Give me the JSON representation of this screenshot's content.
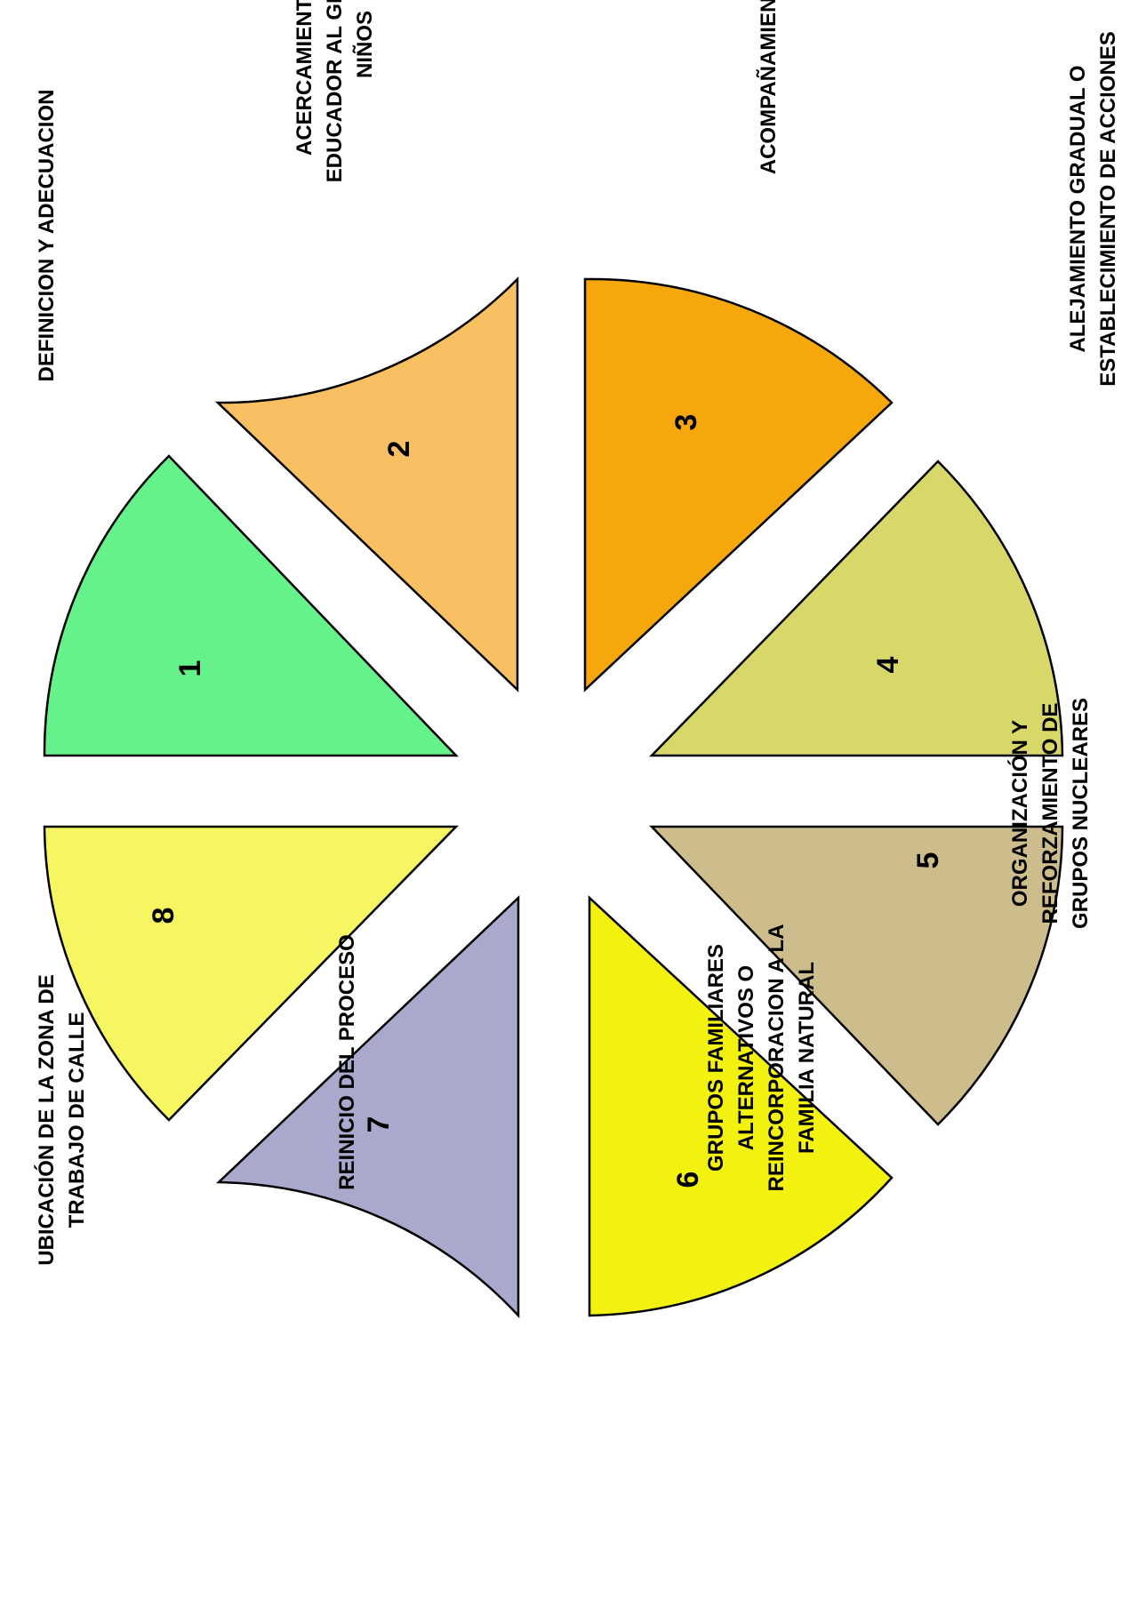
{
  "segments": [
    {
      "number": "1",
      "color": "#66f28a",
      "label": [
        "DEFINICION Y ADECUACION"
      ]
    },
    {
      "number": "2",
      "color": "#f9bf63",
      "label": [
        "ACERCAMIENTO DEL",
        "EDUCADOR AL GRUPO DE",
        "NIÑOS"
      ]
    },
    {
      "number": "3",
      "color": "#f5a70b",
      "label": [
        "ACOMPAÑAMIENTO"
      ]
    },
    {
      "number": "4",
      "color": "#d8d86a",
      "label": [
        "ALEJAMIENTO GRADUAL O",
        "ESTABLECIMIENTO DE ACCIONES"
      ]
    },
    {
      "number": "5",
      "color": "#cdbd8d",
      "label": [
        "ORGANIZACIÓN Y",
        "REFORZAMIENTO DE",
        "GRUPOS NUCLEARES"
      ]
    },
    {
      "number": "6",
      "color": "#f3f10f",
      "label": [
        "GRUPOS FAMILIARES",
        "ALTERNATIVOS O",
        "REINCORPORACION A LA",
        "FAMILIA NATURAL"
      ]
    },
    {
      "number": "7",
      "color": "#a9a9cd",
      "label": [
        "REINICIO DEL PROCESO"
      ]
    },
    {
      "number": "8",
      "color": "#f6f663",
      "label": [
        "UBICACIÓN DE LA ZONA DE",
        "TRABAJO DE CALLE"
      ]
    }
  ]
}
